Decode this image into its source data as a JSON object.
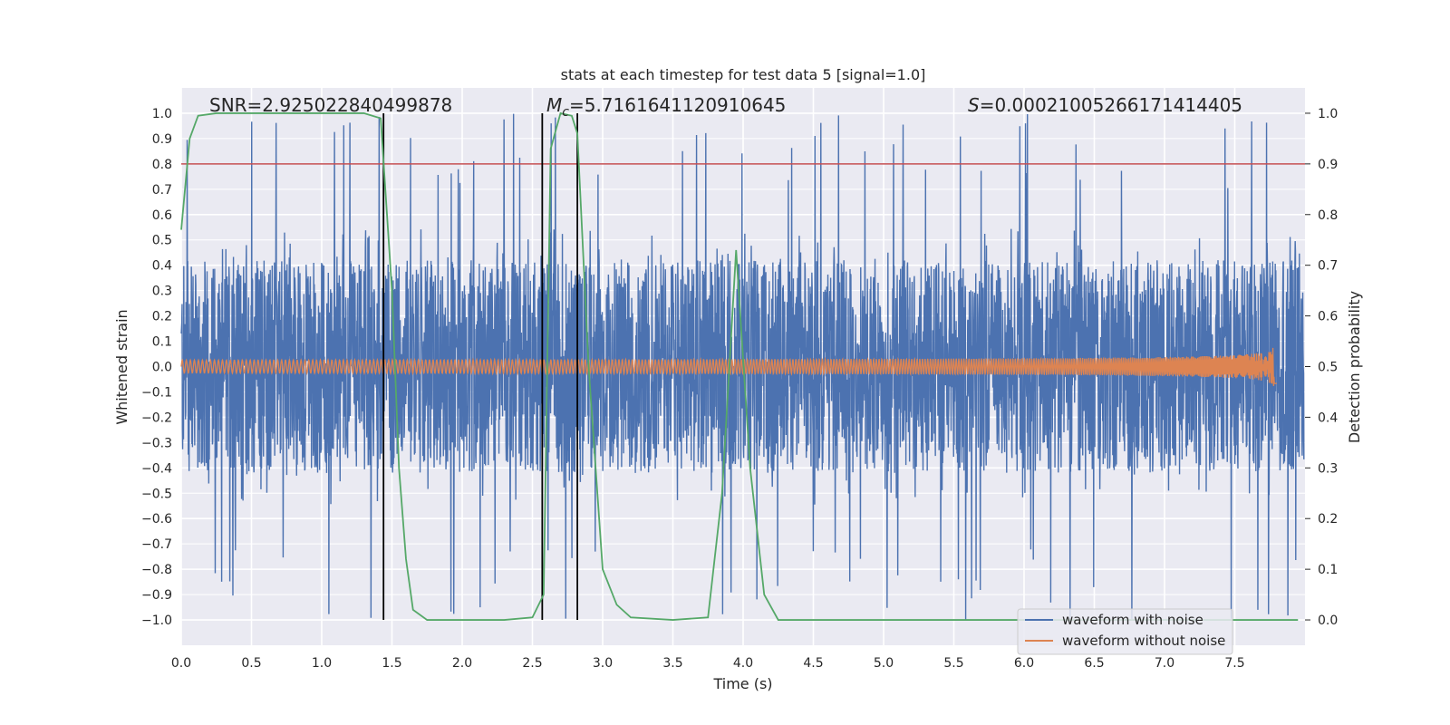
{
  "chart_data": {
    "type": "line",
    "title": "stats at each timestep for test data 5 [signal=1.0]",
    "xlabel": "Time (s)",
    "ylabel": "Whitened strain",
    "y2label": "Detection probability",
    "xlim": [
      0.0,
      8.0
    ],
    "ylim": [
      -1.1,
      1.1
    ],
    "y2lim": [
      -0.05,
      1.05
    ],
    "xticks": [
      "0.0",
      "0.5",
      "1.0",
      "1.5",
      "2.0",
      "2.5",
      "3.0",
      "3.5",
      "4.0",
      "4.5",
      "5.0",
      "5.5",
      "6.0",
      "6.5",
      "7.0",
      "7.5"
    ],
    "yticks": [
      "1.0",
      "0.9",
      "0.8",
      "0.7",
      "0.6",
      "0.5",
      "0.4",
      "0.3",
      "0.2",
      "0.1",
      "0.0",
      "−0.1",
      "−0.2",
      "−0.3",
      "−0.4",
      "−0.5",
      "−0.6",
      "−0.7",
      "−0.8",
      "−0.9",
      "−1.0"
    ],
    "y2ticks": [
      "1.0",
      "0.9",
      "0.8",
      "0.7",
      "0.6",
      "0.5",
      "0.4",
      "0.3",
      "0.2",
      "0.1",
      "0.0"
    ],
    "grid": true,
    "legend_position": "lower-right",
    "annotations": {
      "snr": "SNR=2.925022840499878",
      "mc_symbol": "M",
      "mc_sub": "c",
      "mc_value": "=5.7161641120910645",
      "s_symbol": "S",
      "s_value": "=0.00021005266171414405"
    },
    "threshold_y2": 0.9,
    "vertical_lines_x": [
      1.44,
      2.57,
      2.82
    ],
    "series": [
      {
        "name": "waveform with noise",
        "color": "#4c72b0",
        "description": "dense noisy strain from 0.0 to 8.0 s, envelope roughly ±0.5 with spikes to ±1.0"
      },
      {
        "name": "waveform without noise",
        "color": "#dd8452",
        "description": "chirp signal growing from near 0 to amplitude ~0.08, ending at ~7.8 s",
        "end_x": 7.8,
        "peak_amplitude": 0.08
      },
      {
        "name": "detection probability",
        "color": "#55a868",
        "x": [
          0.0,
          0.06,
          0.12,
          0.25,
          0.5,
          0.8,
          1.0,
          1.3,
          1.42,
          1.5,
          1.55,
          1.6,
          1.65,
          1.75,
          2.0,
          2.3,
          2.5,
          2.58,
          2.63,
          2.7,
          2.78,
          2.82,
          2.9,
          3.0,
          3.1,
          3.2,
          3.5,
          3.75,
          3.85,
          3.95,
          4.05,
          4.15,
          4.25,
          5.0,
          6.0,
          7.0,
          7.95
        ],
        "values": [
          0.77,
          0.95,
          0.995,
          1.0,
          1.0,
          1.0,
          1.0,
          1.0,
          0.99,
          0.65,
          0.3,
          0.12,
          0.02,
          0.0,
          0.0,
          0.0,
          0.005,
          0.05,
          0.93,
          1.0,
          0.995,
          0.96,
          0.5,
          0.1,
          0.03,
          0.005,
          0.0,
          0.005,
          0.25,
          0.73,
          0.3,
          0.05,
          0.0,
          0.0,
          0.0,
          0.0,
          0.0
        ]
      }
    ]
  }
}
